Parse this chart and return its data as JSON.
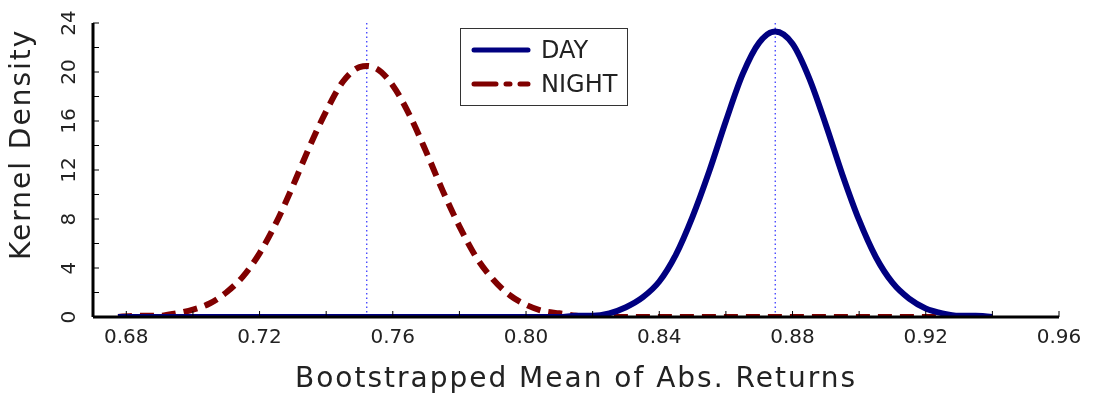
{
  "chart_data": {
    "type": "line",
    "xlabel": "Bootstrapped Mean of Abs. Returns",
    "ylabel": "Kernel Density",
    "xlim": [
      0.67,
      0.96
    ],
    "xticks": [
      0.68,
      {
        "value": 0.7,
        "label": null
      },
      0.72,
      {
        "value": 0.74,
        "label": null
      },
      0.76,
      {
        "value": 0.78,
        "label": null
      },
      {
        "value": 0.8,
        "label": "0.80"
      },
      {
        "value": 0.82,
        "label": null
      },
      0.84,
      {
        "value": 0.86,
        "label": null
      },
      0.88,
      {
        "value": 0.9,
        "label": null
      },
      0.92,
      {
        "value": 0.94,
        "label": null
      },
      0.96
    ],
    "ylim": [
      0,
      24
    ],
    "yticks": [
      0,
      {
        "value": 2,
        "label": null
      },
      4,
      {
        "value": 6,
        "label": null
      },
      8,
      {
        "value": 10,
        "label": null
      },
      12,
      {
        "value": 14,
        "label": null
      },
      16,
      {
        "value": 18,
        "label": null
      },
      20,
      {
        "value": 22,
        "label": null
      },
      24
    ],
    "grid": false,
    "legend": "top",
    "marker": "none",
    "series": [
      {
        "name": "DAY",
        "color": "#000080",
        "line_style": "solid",
        "x": [
          0.6775,
          0.7,
          0.75,
          0.8,
          0.81,
          0.815,
          0.82,
          0.825,
          0.83,
          0.835,
          0.84,
          0.845,
          0.85,
          0.855,
          0.86,
          0.865,
          0.87,
          0.8748,
          0.88,
          0.885,
          0.89,
          0.895,
          0.9,
          0.905,
          0.91,
          0.915,
          0.92,
          0.925,
          0.93,
          0.935,
          0.94
        ],
        "values": [
          0,
          0,
          0,
          0,
          0,
          0.1,
          0.1,
          0.3,
          0.8,
          1.6,
          2.9,
          5.1,
          8.2,
          11.9,
          16.0,
          19.8,
          22.4,
          23.3,
          22.3,
          19.5,
          15.7,
          11.6,
          7.9,
          4.9,
          2.8,
          1.5,
          0.7,
          0.3,
          0.1,
          0.1,
          0
        ]
      },
      {
        "name": "NIGHT",
        "color": "#800000",
        "line_style": "dashed",
        "x": [
          0.6775,
          0.685,
          0.69,
          0.695,
          0.7,
          0.705,
          0.71,
          0.715,
          0.72,
          0.725,
          0.73,
          0.735,
          0.74,
          0.745,
          0.75,
          0.7522,
          0.755,
          0.76,
          0.765,
          0.77,
          0.775,
          0.78,
          0.785,
          0.79,
          0.795,
          0.8,
          0.805,
          0.81,
          0.815,
          0.82,
          0.84,
          0.86,
          0.88,
          0.9,
          0.92,
          0.935
        ],
        "values": [
          0,
          0.1,
          0.1,
          0.3,
          0.6,
          1.1,
          2.0,
          3.3,
          5.2,
          7.7,
          10.7,
          13.9,
          16.8,
          19.2,
          20.4,
          20.5,
          20.3,
          18.9,
          16.5,
          13.5,
          10.3,
          7.4,
          4.9,
          3.1,
          1.8,
          1.0,
          0.5,
          0.3,
          0.1,
          0,
          0,
          0,
          0,
          0,
          0,
          0
        ]
      }
    ],
    "ref_lines": [
      {
        "axis": "x",
        "value": 0.7522,
        "color": "#0000ff",
        "line_style": "dotted"
      },
      {
        "axis": "x",
        "value": 0.8748,
        "color": "#0000ff",
        "line_style": "dotted"
      }
    ]
  }
}
